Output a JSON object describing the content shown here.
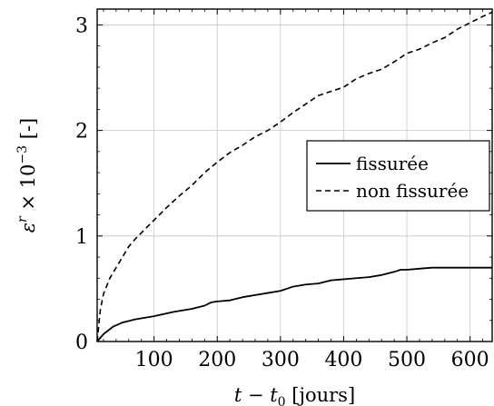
{
  "chart_data": {
    "type": "line",
    "xlabel": {
      "main": "t − t",
      "sub": "0",
      "unit": " [jours]"
    },
    "ylabel": {
      "main": "ε",
      "sup_r": "r",
      "times": " × 10",
      "sup_exp": "−3",
      "unit": " [-]"
    },
    "xlim": [
      10,
      635
    ],
    "ylim": [
      0,
      3.15
    ],
    "xticks": [
      100,
      200,
      300,
      400,
      500,
      600
    ],
    "yticks": [
      0,
      1,
      2,
      3
    ],
    "grid": true,
    "legend_position": "center-right",
    "series": [
      {
        "name": "fissurée",
        "style": "solid",
        "x": [
          10,
          20,
          35,
          50,
          70,
          100,
          130,
          160,
          180,
          190,
          200,
          220,
          240,
          260,
          280,
          300,
          320,
          340,
          360,
          380,
          400,
          420,
          440,
          460,
          480,
          490,
          500,
          520,
          540,
          560,
          580,
          600,
          620,
          635
        ],
        "y": [
          0.0,
          0.07,
          0.14,
          0.18,
          0.21,
          0.24,
          0.28,
          0.31,
          0.34,
          0.37,
          0.38,
          0.39,
          0.42,
          0.44,
          0.46,
          0.48,
          0.52,
          0.54,
          0.55,
          0.58,
          0.59,
          0.6,
          0.61,
          0.63,
          0.66,
          0.68,
          0.68,
          0.69,
          0.7,
          0.7,
          0.7,
          0.7,
          0.7,
          0.7
        ]
      },
      {
        "name": "non fissurée",
        "style": "dashed",
        "x": [
          10,
          15,
          20,
          30,
          40,
          50,
          60,
          70,
          80,
          100,
          120,
          140,
          160,
          180,
          200,
          220,
          240,
          260,
          280,
          300,
          320,
          340,
          360,
          380,
          400,
          420,
          440,
          460,
          480,
          500,
          520,
          540,
          560,
          580,
          600,
          620,
          635
        ],
        "y": [
          0.0,
          0.3,
          0.45,
          0.6,
          0.7,
          0.8,
          0.9,
          0.97,
          1.03,
          1.15,
          1.27,
          1.38,
          1.48,
          1.6,
          1.7,
          1.79,
          1.86,
          1.94,
          2.0,
          2.08,
          2.17,
          2.25,
          2.33,
          2.37,
          2.41,
          2.49,
          2.54,
          2.58,
          2.65,
          2.73,
          2.77,
          2.83,
          2.88,
          2.96,
          3.02,
          3.08,
          3.12
        ]
      }
    ]
  }
}
